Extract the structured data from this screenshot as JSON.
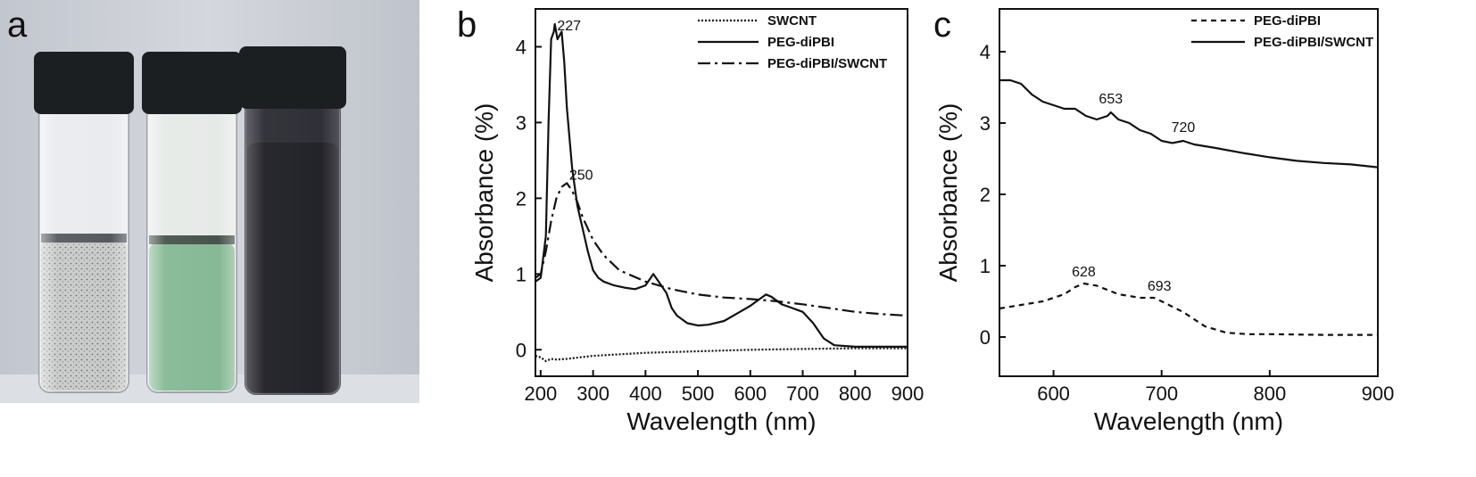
{
  "panels": {
    "a": "a",
    "b": "b",
    "c": "c"
  },
  "photo": {
    "vials": [
      {
        "liquid_color": "#c9cbc9",
        "cap_color": "#1c1f22"
      },
      {
        "liquid_color": "#7fb58f",
        "cap_color": "#1c1f22"
      },
      {
        "liquid_color": "#1d1d24",
        "cap_color": "#1c1f22"
      }
    ],
    "background_color": "#c8ccd4",
    "table_color": "#dcdfe4"
  },
  "chart_data": [
    {
      "type": "line",
      "panel": "b",
      "xlabel": "Wavelength (nm)",
      "ylabel": "Absorbance (%)",
      "xlim": [
        190,
        900
      ],
      "ylim": [
        -0.35,
        4.5
      ],
      "xticks": [
        200,
        300,
        400,
        500,
        600,
        700,
        800,
        900
      ],
      "yticks": [
        0,
        1,
        2,
        3,
        4
      ],
      "legend_position": "top-right",
      "series": [
        {
          "name": "SWCNT",
          "style": "dotted",
          "x": [
            190,
            200,
            210,
            220,
            230,
            250,
            300,
            400,
            500,
            600,
            700,
            800,
            900
          ],
          "y": [
            -0.08,
            -0.1,
            -0.15,
            -0.12,
            -0.13,
            -0.12,
            -0.08,
            -0.04,
            -0.02,
            0.0,
            0.01,
            0.02,
            0.02
          ]
        },
        {
          "name": "PEG-diPBI",
          "style": "solid",
          "x": [
            190,
            200,
            210,
            215,
            220,
            225,
            227,
            232,
            240,
            245,
            250,
            260,
            270,
            280,
            290,
            300,
            310,
            320,
            340,
            360,
            380,
            400,
            410,
            415,
            420,
            430,
            440,
            450,
            460,
            480,
            500,
            520,
            550,
            580,
            600,
            620,
            630,
            640,
            660,
            680,
            700,
            720,
            740,
            760,
            800,
            850,
            900
          ],
          "y": [
            0.9,
            0.95,
            1.5,
            3.0,
            4.1,
            4.2,
            4.3,
            4.1,
            4.2,
            3.8,
            3.2,
            2.4,
            1.9,
            1.6,
            1.3,
            1.05,
            0.95,
            0.9,
            0.85,
            0.82,
            0.8,
            0.85,
            0.95,
            1.0,
            0.95,
            0.85,
            0.75,
            0.55,
            0.45,
            0.35,
            0.32,
            0.33,
            0.38,
            0.5,
            0.58,
            0.68,
            0.73,
            0.7,
            0.6,
            0.55,
            0.5,
            0.35,
            0.15,
            0.06,
            0.04,
            0.04,
            0.04
          ]
        },
        {
          "name": "PEG-diPBI/SWCNT",
          "style": "dashdot",
          "x": [
            190,
            200,
            210,
            220,
            230,
            240,
            250,
            260,
            270,
            280,
            300,
            320,
            350,
            400,
            450,
            500,
            550,
            600,
            650,
            700,
            750,
            800,
            850,
            900
          ],
          "y": [
            0.95,
            1.0,
            1.3,
            1.7,
            2.0,
            2.15,
            2.2,
            2.1,
            1.95,
            1.75,
            1.45,
            1.25,
            1.05,
            0.9,
            0.8,
            0.73,
            0.69,
            0.67,
            0.64,
            0.6,
            0.55,
            0.5,
            0.47,
            0.45
          ]
        }
      ],
      "annotations": [
        {
          "text": "227",
          "x": 227,
          "y": 4.3
        },
        {
          "text": "250",
          "x": 250,
          "y": 2.2
        }
      ]
    },
    {
      "type": "line",
      "panel": "c",
      "xlabel": "Wavelength (nm)",
      "ylabel": "Absorbance (%)",
      "xlim": [
        550,
        900
      ],
      "ylim": [
        -0.55,
        4.6
      ],
      "xticks": [
        600,
        700,
        800,
        900
      ],
      "yticks": [
        0,
        1,
        2,
        3,
        4
      ],
      "legend_position": "top-right",
      "series": [
        {
          "name": "PEG-diPBI",
          "style": "dashed",
          "x": [
            550,
            570,
            590,
            610,
            620,
            628,
            640,
            660,
            680,
            693,
            700,
            720,
            740,
            760,
            780,
            800,
            850,
            900
          ],
          "y": [
            0.4,
            0.45,
            0.5,
            0.6,
            0.7,
            0.75,
            0.72,
            0.6,
            0.55,
            0.55,
            0.5,
            0.35,
            0.15,
            0.06,
            0.04,
            0.04,
            0.03,
            0.03
          ]
        },
        {
          "name": "PEG-diPBI/SWCNT",
          "style": "solid",
          "x": [
            550,
            560,
            570,
            580,
            590,
            600,
            610,
            620,
            630,
            640,
            650,
            653,
            660,
            670,
            680,
            690,
            700,
            710,
            720,
            730,
            750,
            775,
            800,
            825,
            850,
            875,
            900
          ],
          "y": [
            3.6,
            3.6,
            3.55,
            3.4,
            3.3,
            3.25,
            3.2,
            3.2,
            3.1,
            3.05,
            3.1,
            3.15,
            3.05,
            3.0,
            2.9,
            2.85,
            2.75,
            2.72,
            2.75,
            2.7,
            2.65,
            2.58,
            2.52,
            2.47,
            2.44,
            2.42,
            2.38
          ]
        }
      ],
      "annotations": [
        {
          "text": "653",
          "x": 653,
          "y": 3.15
        },
        {
          "text": "720",
          "x": 720,
          "y": 2.75
        },
        {
          "text": "628",
          "x": 628,
          "y": 0.75
        },
        {
          "text": "693",
          "x": 693,
          "y": 0.55
        }
      ]
    }
  ]
}
